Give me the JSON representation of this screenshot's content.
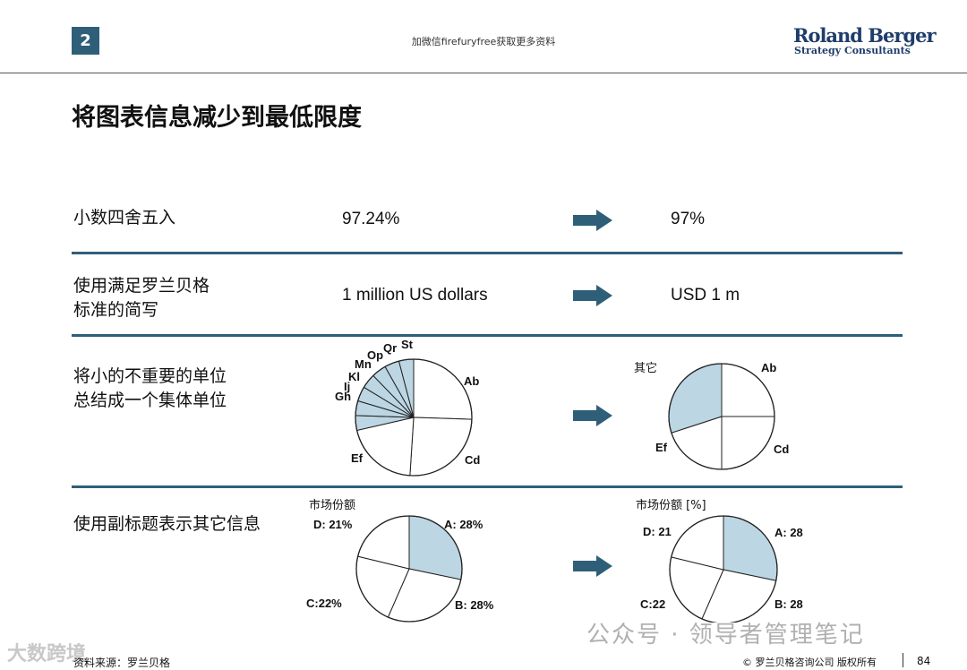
{
  "header": {
    "page_number": "2",
    "note": "加微信firefuryfree获取更多资料",
    "logo_main": "Roland Berger",
    "logo_sub": "Strategy Consultants"
  },
  "title": "将图表信息减少到最低限度",
  "rows": [
    {
      "label": "小数四舍五入",
      "before": "97.24%",
      "after": "97%"
    },
    {
      "label_line1": "使用满足罗兰贝格",
      "label_line2": "标准的简写",
      "before": "1 million US dollars",
      "after": "USD 1 m"
    },
    {
      "label_line1": "将小的不重要的单位",
      "label_line2": "总结成一个集体单位"
    },
    {
      "label": "使用副标题表示其它信息",
      "caption_before": "市场份额",
      "caption_after": "市场份额 [%]"
    }
  ],
  "pies": {
    "pie1_labels": [
      "Ab",
      "Cd",
      "Ef",
      "Gh",
      "Ij",
      "Kl",
      "Mn",
      "Op",
      "Qr",
      "St"
    ],
    "pie2_labels": [
      "Ab",
      "Cd",
      "Ef",
      "其它"
    ],
    "pie3_labels": [
      "A: 28%",
      "B: 28%",
      "C:22%",
      "D: 21%"
    ],
    "pie4_labels": [
      "A: 28",
      "B: 28",
      "C:22",
      "D: 21"
    ]
  },
  "chart_data": [
    {
      "type": "pie",
      "categories": [
        "Ab",
        "Cd",
        "Ef",
        "Gh",
        "Ij",
        "Kl",
        "Mn",
        "Op",
        "Qr",
        "St"
      ],
      "values": [
        25,
        25,
        20,
        4,
        4,
        4,
        4,
        4,
        4,
        4
      ]
    },
    {
      "type": "pie",
      "categories": [
        "Ab",
        "Cd",
        "Ef",
        "其它"
      ],
      "values": [
        25,
        25,
        20,
        30
      ]
    },
    {
      "type": "pie",
      "title": "市场份额",
      "categories": [
        "A",
        "B",
        "C",
        "D"
      ],
      "values": [
        28,
        28,
        22,
        21
      ]
    },
    {
      "type": "pie",
      "title": "市场份额 [%]",
      "categories": [
        "A",
        "B",
        "C",
        "D"
      ],
      "values": [
        28,
        28,
        22,
        21
      ]
    }
  ],
  "colors": {
    "accent": "#2f5f78",
    "highlight_fill": "#bcd6e3",
    "arrow": "#2f5f78"
  },
  "footer": {
    "source": "资料来源：罗兰贝格",
    "copyright": "© 罗兰贝格咨询公司 版权所有",
    "page": "84"
  },
  "watermark": {
    "text": "公众号 · 领导者管理笔记",
    "corner": "大数跨境"
  }
}
